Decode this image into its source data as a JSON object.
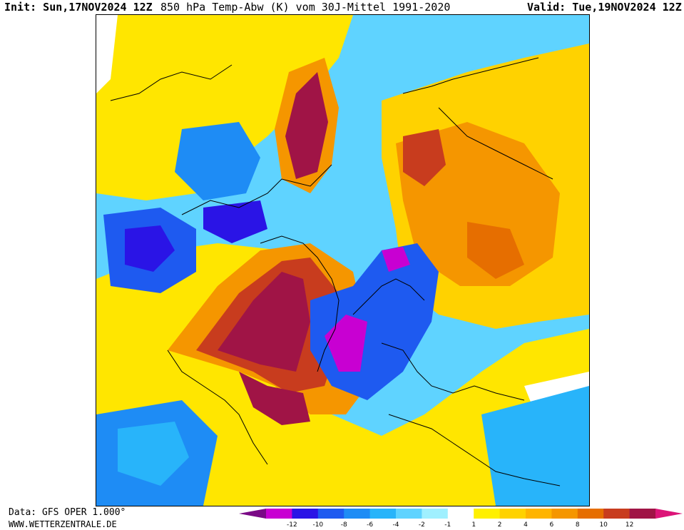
{
  "header": {
    "init_text": "Init: Sun,17NOV2024 12Z",
    "title_text": "850 hPa Temp-Abw (K) vom 30J-Mittel 1991-2020",
    "valid_text": "Valid: Tue,19NOV2024 12Z"
  },
  "footer": {
    "data_source": "Data: GFS OPER 1.000°",
    "website": "WWW.WETTERZENTRALE.DE"
  },
  "colorbar": {
    "tick_labels": [
      "-12",
      "-10",
      "-8",
      "-6",
      "-4",
      "-2",
      "-1",
      "1",
      "2",
      "4",
      "6",
      "8",
      "10",
      "12"
    ],
    "colors": [
      "#7a0a86",
      "#c800d2",
      "#2a14e6",
      "#1e5af0",
      "#1e8cf5",
      "#28b4fa",
      "#5fd3ff",
      "#a0f0ff",
      "#ffffff",
      "#fff000",
      "#ffd200",
      "#ffb400",
      "#f59600",
      "#e66e00",
      "#c83c1e",
      "#a01446",
      "#dc1478"
    ]
  }
}
